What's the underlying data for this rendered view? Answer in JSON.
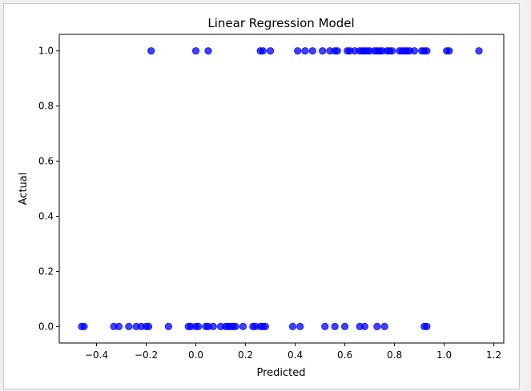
{
  "chart_data": {
    "type": "scatter",
    "title": "Linear Regression Model",
    "xlabel": "Predicted",
    "ylabel": "Actual",
    "xlim": [
      -0.55,
      1.24
    ],
    "ylim": [
      -0.06,
      1.06
    ],
    "grid": false,
    "legend": "none",
    "marker_color": "#0000ff",
    "marker_alpha": 0.75,
    "xticks": [
      -0.4,
      -0.2,
      0.0,
      0.2,
      0.4,
      0.6,
      0.8,
      1.0,
      1.2
    ],
    "xtick_labels": [
      "−0.4",
      "−0.2",
      "0.0",
      "0.2",
      "0.4",
      "0.6",
      "0.8",
      "1.0",
      "1.2"
    ],
    "yticks": [
      0.0,
      0.2,
      0.4,
      0.6,
      0.8,
      1.0
    ],
    "ytick_labels": [
      "0.0",
      "0.2",
      "0.4",
      "0.6",
      "0.8",
      "1.0"
    ],
    "points": [
      {
        "x": -0.18,
        "y": 1
      },
      {
        "x": 0.0,
        "y": 1
      },
      {
        "x": 0.05,
        "y": 1
      },
      {
        "x": 0.26,
        "y": 1
      },
      {
        "x": 0.27,
        "y": 1
      },
      {
        "x": 0.3,
        "y": 1
      },
      {
        "x": 0.41,
        "y": 1
      },
      {
        "x": 0.44,
        "y": 1
      },
      {
        "x": 0.47,
        "y": 1
      },
      {
        "x": 0.51,
        "y": 1
      },
      {
        "x": 0.54,
        "y": 1
      },
      {
        "x": 0.56,
        "y": 1
      },
      {
        "x": 0.57,
        "y": 1
      },
      {
        "x": 0.61,
        "y": 1
      },
      {
        "x": 0.62,
        "y": 1
      },
      {
        "x": 0.64,
        "y": 1
      },
      {
        "x": 0.66,
        "y": 1
      },
      {
        "x": 0.67,
        "y": 1
      },
      {
        "x": 0.68,
        "y": 1
      },
      {
        "x": 0.69,
        "y": 1
      },
      {
        "x": 0.7,
        "y": 1
      },
      {
        "x": 0.72,
        "y": 1
      },
      {
        "x": 0.73,
        "y": 1
      },
      {
        "x": 0.74,
        "y": 1
      },
      {
        "x": 0.75,
        "y": 1
      },
      {
        "x": 0.77,
        "y": 1
      },
      {
        "x": 0.78,
        "y": 1
      },
      {
        "x": 0.79,
        "y": 1
      },
      {
        "x": 0.82,
        "y": 1
      },
      {
        "x": 0.83,
        "y": 1
      },
      {
        "x": 0.84,
        "y": 1
      },
      {
        "x": 0.85,
        "y": 1
      },
      {
        "x": 0.86,
        "y": 1
      },
      {
        "x": 0.88,
        "y": 1
      },
      {
        "x": 0.91,
        "y": 1
      },
      {
        "x": 0.92,
        "y": 1
      },
      {
        "x": 0.93,
        "y": 1
      },
      {
        "x": 1.01,
        "y": 1
      },
      {
        "x": 1.02,
        "y": 1
      },
      {
        "x": 1.14,
        "y": 1
      },
      {
        "x": -0.46,
        "y": 0
      },
      {
        "x": -0.45,
        "y": 0
      },
      {
        "x": -0.33,
        "y": 0
      },
      {
        "x": -0.31,
        "y": 0
      },
      {
        "x": -0.27,
        "y": 0
      },
      {
        "x": -0.24,
        "y": 0
      },
      {
        "x": -0.22,
        "y": 0
      },
      {
        "x": -0.2,
        "y": 0
      },
      {
        "x": -0.19,
        "y": 0
      },
      {
        "x": -0.11,
        "y": 0
      },
      {
        "x": -0.03,
        "y": 0
      },
      {
        "x": -0.02,
        "y": 0
      },
      {
        "x": 0.0,
        "y": 0
      },
      {
        "x": 0.01,
        "y": 0
      },
      {
        "x": 0.04,
        "y": 0
      },
      {
        "x": 0.05,
        "y": 0
      },
      {
        "x": 0.07,
        "y": 0
      },
      {
        "x": 0.1,
        "y": 0
      },
      {
        "x": 0.12,
        "y": 0
      },
      {
        "x": 0.13,
        "y": 0
      },
      {
        "x": 0.14,
        "y": 0
      },
      {
        "x": 0.15,
        "y": 0
      },
      {
        "x": 0.16,
        "y": 0
      },
      {
        "x": 0.19,
        "y": 0
      },
      {
        "x": 0.23,
        "y": 0
      },
      {
        "x": 0.24,
        "y": 0
      },
      {
        "x": 0.26,
        "y": 0
      },
      {
        "x": 0.27,
        "y": 0
      },
      {
        "x": 0.28,
        "y": 0
      },
      {
        "x": 0.39,
        "y": 0
      },
      {
        "x": 0.42,
        "y": 0
      },
      {
        "x": 0.52,
        "y": 0
      },
      {
        "x": 0.56,
        "y": 0
      },
      {
        "x": 0.6,
        "y": 0
      },
      {
        "x": 0.66,
        "y": 0
      },
      {
        "x": 0.68,
        "y": 0
      },
      {
        "x": 0.73,
        "y": 0
      },
      {
        "x": 0.76,
        "y": 0
      },
      {
        "x": 0.92,
        "y": 0
      },
      {
        "x": 0.93,
        "y": 0
      }
    ]
  }
}
